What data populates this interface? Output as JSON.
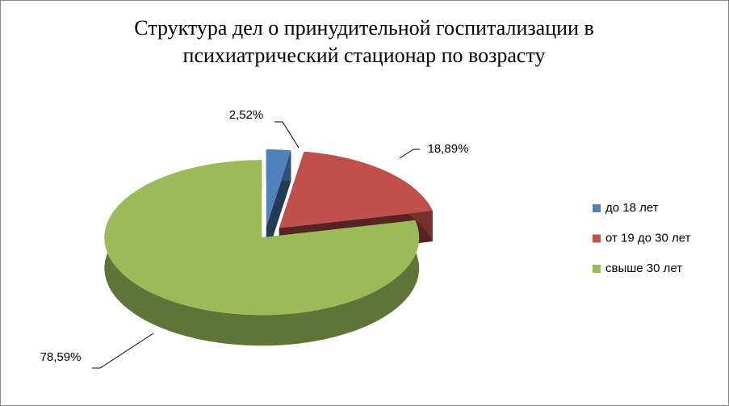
{
  "chart_data": {
    "type": "pie",
    "title": "Структура дел о принудительной госпитализации в психиатрический стационар по возрасту",
    "categories": [
      "до 18 лет",
      "от 19 до 30 лет",
      "свыше 30 лет"
    ],
    "values": [
      2.52,
      18.89,
      78.59
    ],
    "value_labels": [
      "2,52%",
      "18,89%",
      "78,59%"
    ],
    "colors": [
      "#4f81bd",
      "#c0504d",
      "#9bbb59"
    ],
    "legend": "right"
  }
}
